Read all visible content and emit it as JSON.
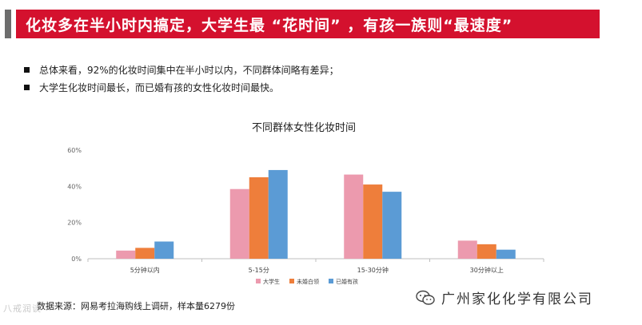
{
  "header": {
    "title": "化妆多在半小时内搞定，大学生最 “花时间” ，有孩一族则“最速度”",
    "accent_color": "#d4112e"
  },
  "bullets": [
    "总体来看，92%的化妆时间集中在半小时以内，不同群体间略有差异；",
    "大学生化妆时间最长，而已婚有孩的女性化妆时间最快。"
  ],
  "chart_data": {
    "type": "bar",
    "title": "不同群体女性化妆时间",
    "categories": [
      "5分钟以内",
      "5-15分",
      "15-30分钟",
      "30分钟以上"
    ],
    "series": [
      {
        "name": "大学生",
        "color": "#ec9aae",
        "values": [
          4.5,
          38.5,
          46.5,
          10
        ]
      },
      {
        "name": "未婚白领",
        "color": "#ee7e3b",
        "values": [
          6,
          45,
          41,
          8
        ]
      },
      {
        "name": "已婚有孩",
        "color": "#5b9bd5",
        "values": [
          9.5,
          49,
          37,
          5
        ]
      }
    ],
    "ylim": [
      0,
      60
    ],
    "yticks": [
      "0%",
      "20%",
      "40%",
      "60%"
    ],
    "legend_position": "bottom",
    "grid": false
  },
  "source": "数据来源：网易考拉海购线上调研，样本量6279份",
  "watermark": {
    "left_text": "八戒润谈",
    "brand_text": "广州家化化学有限公司"
  }
}
